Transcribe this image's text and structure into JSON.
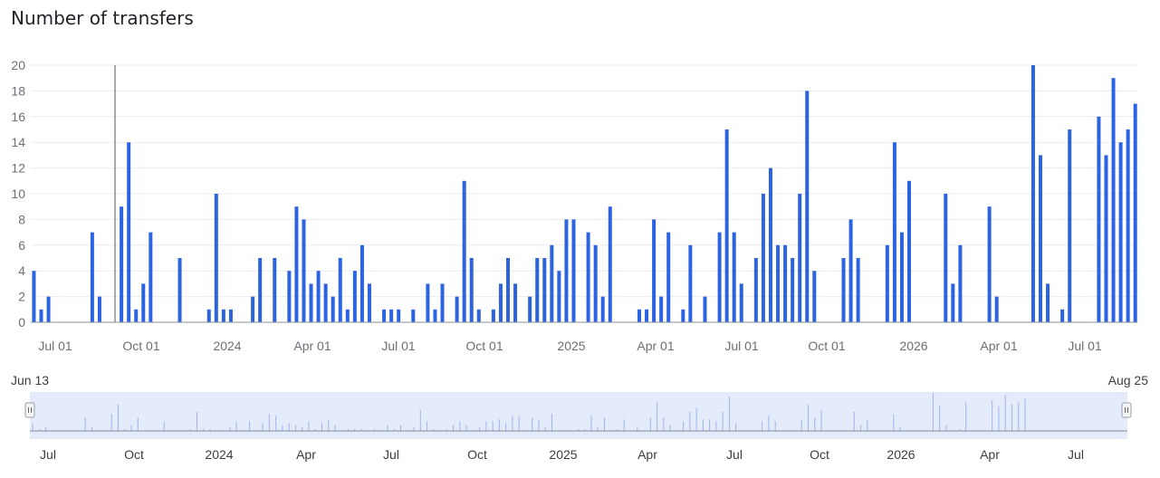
{
  "chart_title": "Number of transfers",
  "navigator": {
    "start_label": "Jun 13",
    "end_label": "Aug 25"
  },
  "colors": {
    "bar": "#2b63e0",
    "grid": "#ececef",
    "navigator_fill": "#e4ebfb",
    "navigator_line": "#9fb3ec"
  },
  "chart_data": {
    "type": "bar",
    "title": "Number of transfers",
    "xlabel": "",
    "ylabel": "",
    "ylim": [
      0,
      20
    ],
    "yticks": [
      "0",
      "2",
      "4",
      "6",
      "8",
      "10",
      "12",
      "14",
      "16",
      "18",
      "20"
    ],
    "xticks": [
      "Jul 01",
      "Oct 01",
      "2024",
      "Apr 01",
      "Jul 01",
      "Oct 01",
      "2025",
      "Apr 01",
      "Jul 01",
      "Oct 01",
      "2026",
      "Apr 01",
      "Jul 01"
    ],
    "navigator_ticks": [
      "Jul",
      "Oct",
      "2024",
      "Apr",
      "Jul",
      "Oct",
      "2025",
      "Apr",
      "Jul",
      "Oct",
      "2026",
      "Apr",
      "Jul"
    ],
    "grid": true,
    "legend": "none",
    "series": [
      {
        "values": [
          [
            "2023-06-16",
            4
          ],
          [
            "2023-06-23",
            1
          ],
          [
            "2023-06-30",
            2
          ],
          [
            "2023-08-11",
            7
          ],
          [
            "2023-08-18",
            2
          ],
          [
            "2023-09-08",
            9
          ],
          [
            "2023-09-15",
            14
          ],
          [
            "2023-09-22",
            1
          ],
          [
            "2023-09-29",
            3
          ],
          [
            "2023-10-06",
            7
          ],
          [
            "2023-11-03",
            5
          ],
          [
            "2023-12-01",
            1
          ],
          [
            "2023-12-08",
            10
          ],
          [
            "2023-12-15",
            1
          ],
          [
            "2023-12-22",
            1
          ],
          [
            "2024-01-12",
            2
          ],
          [
            "2024-01-19",
            5
          ],
          [
            "2024-02-02",
            5
          ],
          [
            "2024-02-16",
            4
          ],
          [
            "2024-02-23",
            9
          ],
          [
            "2024-03-01",
            8
          ],
          [
            "2024-03-08",
            3
          ],
          [
            "2024-03-15",
            4
          ],
          [
            "2024-03-22",
            3
          ],
          [
            "2024-03-29",
            2
          ],
          [
            "2024-04-05",
            5
          ],
          [
            "2024-04-12",
            1
          ],
          [
            "2024-04-19",
            4
          ],
          [
            "2024-04-26",
            6
          ],
          [
            "2024-05-03",
            3
          ],
          [
            "2024-05-17",
            1
          ],
          [
            "2024-05-24",
            1
          ],
          [
            "2024-05-31",
            1
          ],
          [
            "2024-06-14",
            1
          ],
          [
            "2024-06-28",
            3
          ],
          [
            "2024-07-05",
            1
          ],
          [
            "2024-07-12",
            3
          ],
          [
            "2024-07-26",
            2
          ],
          [
            "2024-08-02",
            11
          ],
          [
            "2024-08-09",
            5
          ],
          [
            "2024-08-16",
            1
          ],
          [
            "2024-08-30",
            1
          ],
          [
            "2024-09-06",
            3
          ],
          [
            "2024-09-13",
            5
          ],
          [
            "2024-09-20",
            3
          ],
          [
            "2024-10-04",
            2
          ],
          [
            "2024-10-11",
            5
          ],
          [
            "2024-10-18",
            5
          ],
          [
            "2024-10-25",
            6
          ],
          [
            "2024-11-01",
            4
          ],
          [
            "2024-11-08",
            8
          ],
          [
            "2024-11-15",
            8
          ],
          [
            "2024-11-29",
            7
          ],
          [
            "2024-12-06",
            6
          ],
          [
            "2024-12-13",
            2
          ],
          [
            "2024-12-20",
            9
          ],
          [
            "2025-01-17",
            1
          ],
          [
            "2025-01-24",
            1
          ],
          [
            "2025-01-31",
            8
          ],
          [
            "2025-02-07",
            2
          ],
          [
            "2025-02-14",
            7
          ],
          [
            "2025-02-28",
            1
          ],
          [
            "2025-03-07",
            6
          ],
          [
            "2025-03-21",
            2
          ],
          [
            "2025-04-04",
            7
          ],
          [
            "2025-04-11",
            15
          ],
          [
            "2025-04-18",
            7
          ],
          [
            "2025-04-25",
            3
          ],
          [
            "2025-05-09",
            5
          ],
          [
            "2025-05-16",
            10
          ],
          [
            "2025-05-23",
            12
          ],
          [
            "2025-05-30",
            6
          ],
          [
            "2025-06-06",
            6
          ],
          [
            "2025-06-13",
            5
          ],
          [
            "2025-06-20",
            10
          ],
          [
            "2025-06-27",
            18
          ],
          [
            "2025-07-04",
            4
          ],
          [
            "2025-08-01",
            5
          ],
          [
            "2025-08-08",
            8
          ],
          [
            "2025-08-15",
            5
          ],
          [
            "2025-09-12",
            6
          ],
          [
            "2025-09-19",
            14
          ],
          [
            "2025-09-26",
            7
          ],
          [
            "2025-10-03",
            11
          ],
          [
            "2025-11-07",
            10
          ],
          [
            "2025-11-14",
            3
          ],
          [
            "2025-11-21",
            6
          ],
          [
            "2025-12-19",
            9
          ],
          [
            "2025-12-26",
            2
          ],
          [
            "2026-01-30",
            20
          ],
          [
            "2026-02-06",
            13
          ],
          [
            "2026-02-13",
            3
          ],
          [
            "2026-02-27",
            1
          ],
          [
            "2026-03-06",
            15
          ],
          [
            "2026-04-03",
            16
          ],
          [
            "2026-04-10",
            13
          ],
          [
            "2026-04-17",
            19
          ],
          [
            "2026-04-24",
            14
          ],
          [
            "2026-05-01",
            15
          ],
          [
            "2026-05-08",
            17
          ]
        ]
      }
    ]
  }
}
